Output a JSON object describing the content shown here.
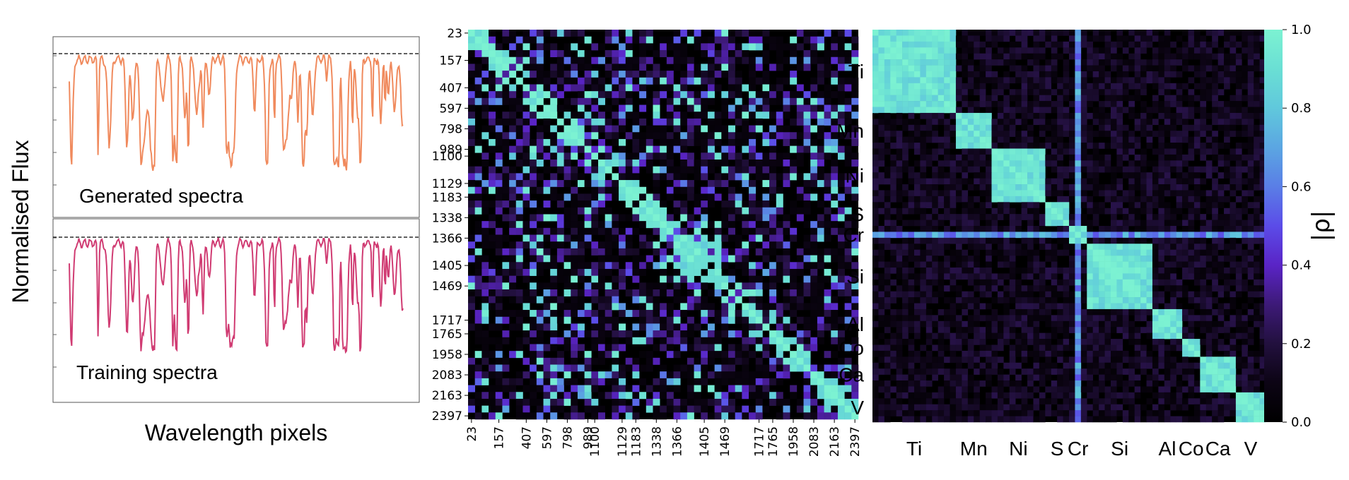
{
  "chart_data": [
    {
      "type": "line",
      "panel": "spectra",
      "ylabel": "Normalised Flux",
      "xlabel": "Wavelength pixels",
      "reference_line": {
        "y": 1.0,
        "style": "dashed"
      },
      "series": [
        {
          "name": "Generated spectra",
          "color": "#f08a5d"
        },
        {
          "name": "Training spectra",
          "color": "#d03b72"
        }
      ],
      "y_ticks_shown": false,
      "x_ticks_shown": false
    },
    {
      "type": "heatmap",
      "panel": "pixel-correlation",
      "tick_labels": [
        "23",
        "157",
        "407",
        "597",
        "798",
        "989",
        "1100",
        "1129",
        "1183",
        "1338",
        "1366",
        "1405",
        "1469",
        "1717",
        "1765",
        "1958",
        "2083",
        "2163",
        "2397"
      ],
      "block_starts": [
        0,
        4,
        8,
        11,
        14,
        17,
        18,
        22,
        24,
        27,
        30,
        34,
        37,
        42,
        44,
        47,
        50,
        53,
        56
      ],
      "n_cells": 57,
      "colormap": "cool-purple-black",
      "diagonal_value": 1.0
    },
    {
      "type": "heatmap",
      "panel": "element-correlation",
      "element_labels": [
        "Ti",
        "Mn",
        "Ni",
        "S",
        "Cr",
        "Si",
        "Al",
        "Co",
        "Ca",
        "V"
      ],
      "block_sizes": [
        14,
        6,
        9,
        4,
        3,
        11,
        5,
        3,
        6,
        5
      ],
      "colorbar": {
        "label": "|ρ|",
        "min": 0.0,
        "max": 1.0,
        "ticks": [
          "0.0",
          "0.2",
          "0.4",
          "0.6",
          "0.8",
          "1.0"
        ]
      },
      "colormap": "cool-purple-black"
    }
  ]
}
